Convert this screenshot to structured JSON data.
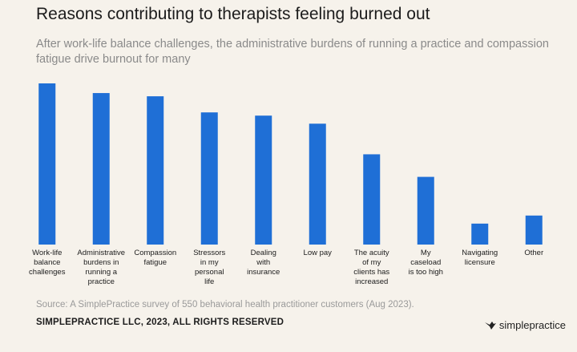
{
  "header": {
    "title": "Reasons contributing to therapists feeling burned out",
    "subtitle": "After work-life balance challenges, the administrative burdens of running a practice and compassion fatigue drive burnout for many"
  },
  "footer": {
    "source": "Source: A SimplePractice survey of 550 behavioral health practitioner customers (Aug 2023).",
    "copyright": "SIMPLEPRACTICE LLC, 2023, ALL RIGHTS RESERVED",
    "brand_name": "simplepractice",
    "brand_icon": "hummingbird-icon"
  },
  "colors": {
    "bar": "#1f6fd6",
    "background": "#f6f2eb"
  },
  "chart_data": {
    "type": "bar",
    "categories": [
      [
        "Work-life",
        "balance",
        "challenges"
      ],
      [
        "Administrative",
        "burdens in",
        "running a",
        "practice"
      ],
      [
        "Compassion",
        "fatigue"
      ],
      [
        "Stressors",
        "in my",
        "personal",
        "life"
      ],
      [
        "Dealing",
        "with",
        "insurance"
      ],
      [
        "Low pay"
      ],
      [
        "The acuity",
        "of my",
        "clients has",
        "increased"
      ],
      [
        "My",
        "caseload",
        "is too high"
      ],
      [
        "Navigating",
        "licensure"
      ],
      [
        "Other"
      ]
    ],
    "values": [
      100,
      94,
      92,
      82,
      80,
      75,
      56,
      42,
      13,
      18
    ],
    "ylim": [
      0,
      100
    ],
    "grid": false,
    "legend": "none",
    "xlabel": "",
    "ylabel": ""
  }
}
